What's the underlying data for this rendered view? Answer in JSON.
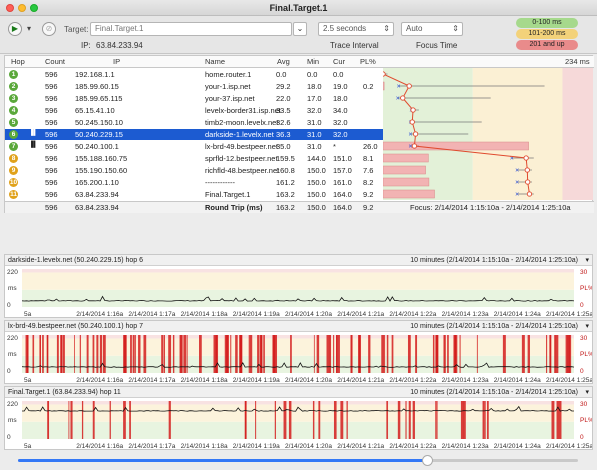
{
  "window": {
    "title": "Final.Target.1"
  },
  "toolbar": {
    "target_label": "Target:",
    "target_value": "Final.Target.1",
    "ip_label": "IP:",
    "ip_value": "63.84.233.94",
    "interval_value": "2.5 seconds",
    "interval_label": "Trace Interval",
    "focus_value": "Auto",
    "focus_label": "Focus Time",
    "legend": [
      {
        "label": "0-100 ms",
        "color": "#a6d98c"
      },
      {
        "label": "101-200 ms",
        "color": "#f3d27a"
      },
      {
        "label": "201 and up",
        "color": "#e98b8b"
      }
    ]
  },
  "table": {
    "headers": {
      "hop": "Hop",
      "count": "Count",
      "ip": "IP",
      "name": "Name",
      "avg": "Avg",
      "min": "Min",
      "cur": "Cur",
      "pl": "PL%",
      "ms": "234 ms"
    },
    "rows": [
      {
        "hop": "1",
        "count": "596",
        "ip": "192.168.1.1",
        "name": "home.router.1",
        "avg": "0.0",
        "min": "0.0",
        "cur": "0.0",
        "pl": "",
        "color": "#5aa83a",
        "avgv": 0.0,
        "minv": 0.0,
        "maxv": 5,
        "plv": 0
      },
      {
        "hop": "2",
        "count": "596",
        "ip": "185.99.60.15",
        "name": "your-1.isp.net",
        "avg": "29.2",
        "min": "18.0",
        "cur": "19.0",
        "pl": "0.2",
        "color": "#5aa83a",
        "avgv": 29.2,
        "minv": 18.0,
        "maxv": 180,
        "plv": 0.2
      },
      {
        "hop": "3",
        "count": "596",
        "ip": "185.99.65.115",
        "name": "your-37.isp.net",
        "avg": "22.0",
        "min": "17.0",
        "cur": "18.0",
        "pl": "",
        "color": "#5aa83a",
        "avgv": 22.0,
        "minv": 17.0,
        "maxv": 120,
        "plv": 0
      },
      {
        "hop": "4",
        "count": "596",
        "ip": "65.15.41.10",
        "name": "levelx-border31.isp.net",
        "avg": "33.5",
        "min": "32.0",
        "cur": "34.0",
        "pl": "",
        "color": "#5aa83a",
        "avgv": 33.5,
        "minv": 32.0,
        "maxv": 40,
        "plv": 0
      },
      {
        "hop": "5",
        "count": "596",
        "ip": "50.245.150.10",
        "name": "timb2-moon.levelx.net",
        "avg": "32.6",
        "min": "31.0",
        "cur": "32.0",
        "pl": "",
        "color": "#5aa83a",
        "avgv": 32.6,
        "minv": 31.0,
        "maxv": 110,
        "plv": 0
      },
      {
        "hop": "6",
        "count": "596",
        "ip": "50.240.229.15",
        "name": "darkside-1.levelx.net",
        "avg": "36.3",
        "min": "31.0",
        "cur": "32.0",
        "pl": "",
        "color": "#5aa83a",
        "avgv": 36.3,
        "minv": 31.0,
        "maxv": 95,
        "plv": 0
      },
      {
        "hop": "7",
        "count": "596",
        "ip": "50.240.100.1",
        "name": "lx-brd-49.bestpeer.net",
        "avg": "35.0",
        "min": "31.0",
        "cur": "*",
        "pl": "26.0",
        "color": "#5aa83a",
        "avgv": 35.0,
        "minv": 31.0,
        "maxv": 40,
        "plv": 26.0
      },
      {
        "hop": "8",
        "count": "596",
        "ip": "155.188.160.75",
        "name": "sprfld-12.bestpeer.net",
        "avg": "159.5",
        "min": "144.0",
        "cur": "151.0",
        "pl": "8.1",
        "color": "#e0a21b",
        "avgv": 159.5,
        "minv": 144.0,
        "maxv": 168,
        "plv": 8.1
      },
      {
        "hop": "9",
        "count": "596",
        "ip": "155.190.150.60",
        "name": "richfld-48.bestpeer.net",
        "avg": "160.8",
        "min": "150.0",
        "cur": "157.0",
        "pl": "7.6",
        "color": "#e0a21b",
        "avgv": 160.8,
        "minv": 150.0,
        "maxv": 166,
        "plv": 7.6
      },
      {
        "hop": "10",
        "count": "596",
        "ip": "165.200.1.10",
        "name": "------------",
        "avg": "161.2",
        "min": "150.0",
        "cur": "161.0",
        "pl": "8.2",
        "color": "#e0a21b",
        "avgv": 161.2,
        "minv": 150.0,
        "maxv": 166,
        "plv": 8.2
      },
      {
        "hop": "11",
        "count": "596",
        "ip": "63.84.233.94",
        "name": "Final.Target.1",
        "avg": "163.2",
        "min": "150.0",
        "cur": "164.0",
        "pl": "9.2",
        "color": "#e0a21b",
        "avgv": 163.2,
        "minv": 150.0,
        "maxv": 168,
        "plv": 9.2
      }
    ],
    "selected_index": 5,
    "summary": {
      "count": "596",
      "ip": "63.84.233.94",
      "label": "Round Trip (ms)",
      "avg": "163.2",
      "min": "150.0",
      "cur": "164.0",
      "pl": "9.2",
      "focus": "Focus: 2/14/2014 1:15:10a - 2/14/2014 1:25:10a"
    }
  },
  "graphs": [
    {
      "title": "darkside-1.levelx.net (50.240.229.15) hop 6",
      "range": "10 minutes (2/14/2014 1:15:10a - 2/14/2014 1:25:10a)",
      "ymax": "220",
      "ylabel": "ms",
      "plmax": "30",
      "pllabel": "PL%",
      "base": 36,
      "loss": 0
    },
    {
      "title": "lx-brd-49.bestpeer.net (50.240.100.1) hop 7",
      "range": "10 minutes (2/14/2014 1:15:10a - 2/14/2014 1:25:10a)",
      "ymax": "220",
      "ylabel": "ms",
      "plmax": "30",
      "pllabel": "PL%",
      "base": 35,
      "loss": 26
    },
    {
      "title": "Final.Target.1 (63.84.233.94) hop 11",
      "range": "10 minutes (2/14/2014 1:15:10a - 2/14/2014 1:25:10a)",
      "ymax": "220",
      "ylabel": "ms",
      "plmax": "30",
      "pllabel": "PL%",
      "base": 163,
      "loss": 9
    }
  ],
  "time_ticks": [
    "5a",
    "2/14/2014 1:16a",
    "2/14/2014 1:17a",
    "2/14/2014 1:18a",
    "2/14/2014 1:19a",
    "2/14/2014 1:20a",
    "2/14/2014 1:21a",
    "2/14/2014 1:22a",
    "2/14/2014 1:23a",
    "2/14/2014 1:24a",
    "2/14/2014 1:25a"
  ],
  "timeline": {
    "position": 0.73
  }
}
